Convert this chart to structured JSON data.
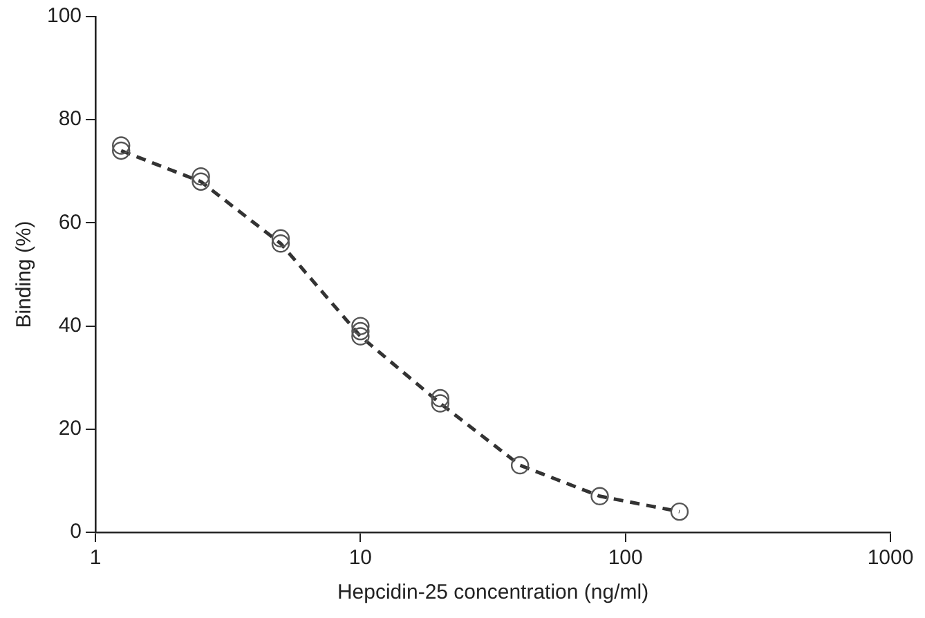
{
  "chart_data": {
    "type": "scatter",
    "xlabel": "Hepcidin-25 concentration (ng/ml)",
    "ylabel": "Binding (%)",
    "log": "x",
    "xlim": [
      1,
      1000
    ],
    "xticks": [
      1,
      10,
      100,
      1000
    ],
    "ylim": [
      0,
      100
    ],
    "yticks": [
      0,
      20,
      40,
      60,
      80,
      100
    ],
    "grid": false,
    "legend": false,
    "series": [
      {
        "color": "#555555",
        "marker": "circle",
        "x": [
          1.25,
          1.25,
          2.5,
          2.5,
          5,
          5,
          10,
          10,
          10,
          20,
          20,
          40,
          80,
          160
        ],
        "values": [
          75,
          74,
          69,
          68,
          57,
          56,
          40,
          39,
          38,
          26,
          25,
          13,
          7,
          4
        ]
      },
      {
        "type": "line",
        "color": "#333333",
        "marker": "none",
        "line_style": "dashed",
        "x": [
          1.25,
          2.5,
          5,
          10,
          20,
          40,
          80,
          160
        ],
        "values": [
          74,
          68,
          56,
          38,
          25,
          13,
          7,
          4
        ]
      }
    ]
  }
}
